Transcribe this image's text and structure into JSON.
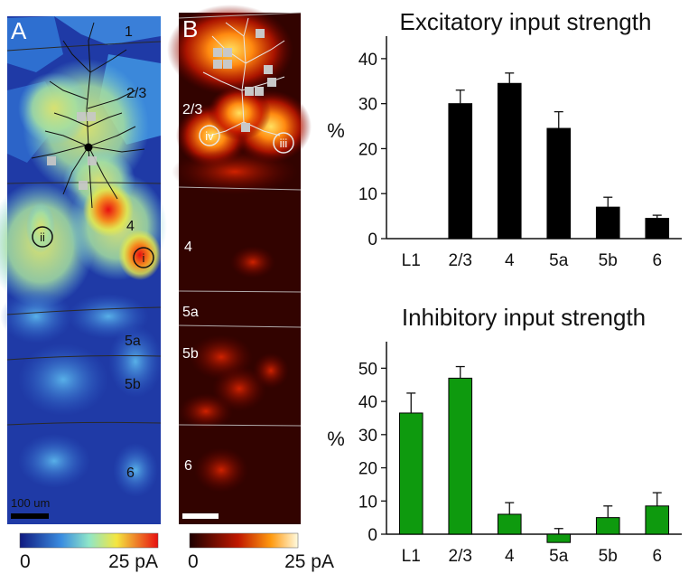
{
  "panels": {
    "a": {
      "letter": "A",
      "layers": [
        "1",
        "2/3",
        "4",
        "5a",
        "5b",
        "6"
      ],
      "sites": [
        "i",
        "ii"
      ],
      "scalebar_label": "100 um",
      "colorbar": {
        "min": "0",
        "max": "25 pA"
      },
      "colors": {
        "low": "#1a2fa8",
        "mid": "#6fd0e8",
        "high": "#e81e1e"
      }
    },
    "b": {
      "letter": "B",
      "layers": [
        "2/3",
        "4",
        "5a",
        "5b",
        "6"
      ],
      "sites": [
        "iii",
        "iv"
      ],
      "colorbar": {
        "min": "0",
        "max": "25 pA"
      },
      "colors": {
        "low": "#2a0000",
        "mid": "#c81e00",
        "high": "#fff6a0"
      }
    }
  },
  "chart_data": [
    {
      "type": "bar",
      "title": "Excitatory input strength",
      "ylabel": "%",
      "categories": [
        "L1",
        "2/3",
        "4",
        "5a",
        "5b",
        "6"
      ],
      "values": [
        0,
        30,
        34.5,
        24.5,
        7,
        4.5
      ],
      "errors": [
        0,
        3,
        2.3,
        3.7,
        2.2,
        0.7
      ],
      "ylim": [
        0,
        45
      ],
      "yticks": [
        0,
        10,
        20,
        30,
        40
      ],
      "color": "#000000"
    },
    {
      "type": "bar",
      "title": "Inhibitory input strength",
      "ylabel": "%",
      "categories": [
        "L1",
        "2/3",
        "4",
        "5a",
        "5b",
        "6"
      ],
      "values": [
        36.5,
        47,
        6,
        -2.5,
        5,
        8.5
      ],
      "errors": [
        6,
        3.5,
        3.5,
        4.2,
        3.5,
        4
      ],
      "ylim": [
        0,
        58
      ],
      "yticks": [
        0,
        10,
        20,
        30,
        40,
        50
      ],
      "color": "#0e9a0e"
    }
  ]
}
